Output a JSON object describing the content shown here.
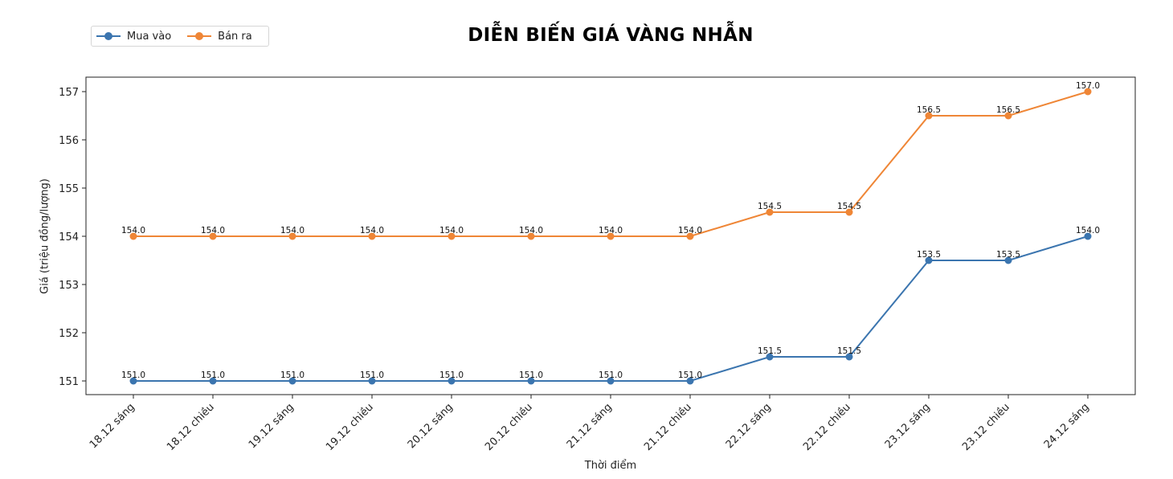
{
  "chart_data": {
    "type": "line",
    "title": "DIỄN BIẾN GIÁ VÀNG NHẪN",
    "xlabel": "Thời điểm",
    "ylabel": "Giá (triệu đồng/lượng)",
    "categories": [
      "18.12 sáng",
      "18.12 chiều",
      "19.12 sáng",
      "19.12 chiều",
      "20.12 sáng",
      "20.12 chiều",
      "21.12 sáng",
      "21.12 chiều",
      "22.12 sáng",
      "22.12 chiều",
      "23.12 sáng",
      "23.12 chiều",
      "24.12 sáng"
    ],
    "series": [
      {
        "name": "Mua vào",
        "color": "#3b75af",
        "values": [
          151.0,
          151.0,
          151.0,
          151.0,
          151.0,
          151.0,
          151.0,
          151.0,
          151.5,
          151.5,
          153.5,
          153.5,
          154.0
        ]
      },
      {
        "name": "Bán ra",
        "color": "#ef8636",
        "values": [
          154.0,
          154.0,
          154.0,
          154.0,
          154.0,
          154.0,
          154.0,
          154.0,
          154.5,
          154.5,
          156.5,
          156.5,
          157.0
        ]
      }
    ],
    "yticks": [
      151,
      152,
      153,
      154,
      155,
      156,
      157
    ],
    "ylim": [
      150.7,
      157.3
    ],
    "grid": false,
    "legend_position": "upper left (outside, above axes)",
    "data_labels": true,
    "xtick_rotation": 45
  },
  "legend": {
    "items": [
      {
        "label": "Mua vào",
        "color": "#3b75af"
      },
      {
        "label": "Bán ra",
        "color": "#ef8636"
      }
    ]
  }
}
